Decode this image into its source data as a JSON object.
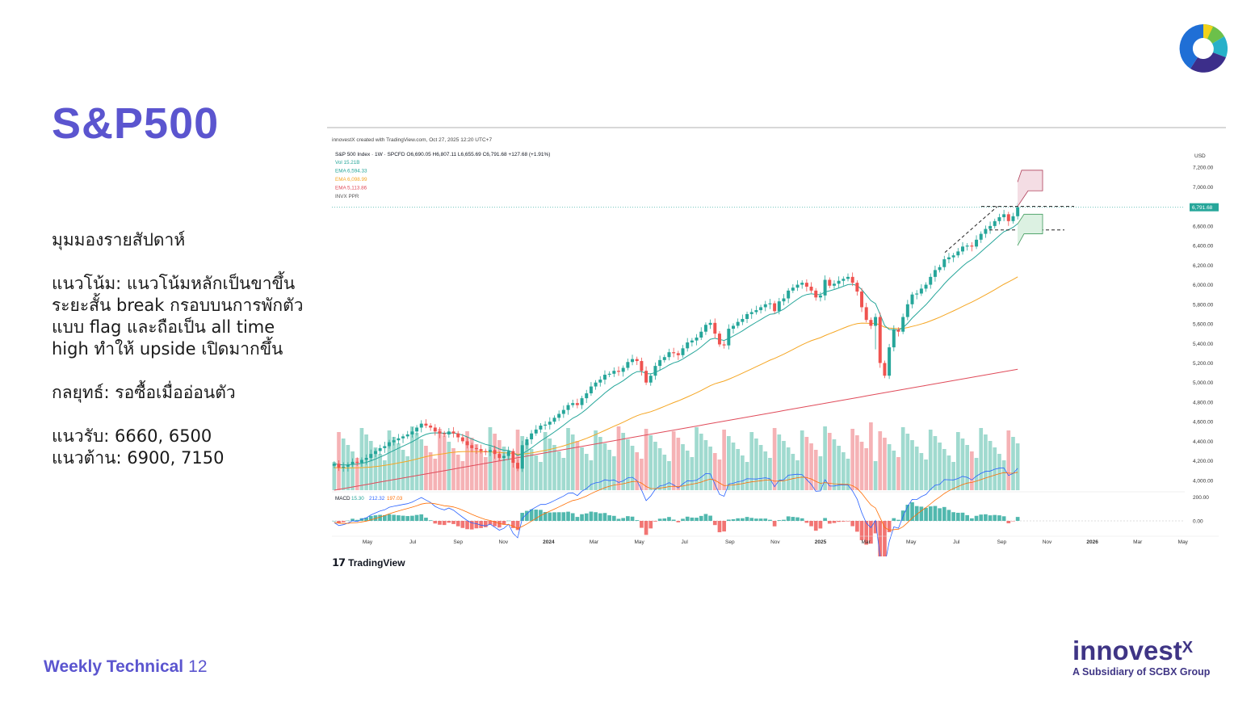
{
  "slide": {
    "title": "S&P500",
    "footer_label": "Weekly Technical",
    "page_number": "12"
  },
  "commentary": {
    "heading": "มุมมองรายสัปดาห์",
    "trend_lines": [
      "แนวโน้ม: แนวโน้มหลักเป็นขาขึ้น",
      "ระยะสั้น break กรอบบนการพักตัว",
      "แบบ flag และถือเป็น all time",
      "high ทำให้ upside เปิดมากขึ้น"
    ],
    "strategy": "กลยุทธ์: รอซื้อเมื่ออ่อนตัว",
    "support": "แนวรับ: 6660, 6500",
    "resistance": "แนวต้าน: 6900, 7150"
  },
  "brand": {
    "wordmark": "innovest",
    "wordmark_suffix": "X",
    "tagline": "A Subsidiary of SCBX Group",
    "colors": {
      "primary": "#3f3585",
      "accent": "#5b55cf",
      "logo_blue": "#1f6fd6",
      "logo_green": "#6cc04a",
      "logo_yellow": "#f2d21b",
      "logo_teal": "#27b1c9",
      "logo_purple": "#3c2e8a"
    }
  },
  "chart_data": {
    "type": "candlestick",
    "credit": "innovestX created with TradingView.com, Oct 27, 2025 12:20 UTC+7",
    "source_logo": "TradingView",
    "header": "S&P 500 Index · 1W · SPCFD  O6,690.05  H6,807.11  L6,655.69  C6,791.68  +127.68 (+1.91%)",
    "legend": [
      {
        "label": "Vol",
        "value": "15.21B",
        "color": "#26a69a"
      },
      {
        "label": "EMA",
        "value": "6,594.33",
        "color": "#26a69a"
      },
      {
        "label": "EMA",
        "value": "6,098.99",
        "color": "#f5a623"
      },
      {
        "label": "EMA",
        "value": "5,113.86",
        "color": "#e04b5a"
      },
      {
        "label": "INVX PPR",
        "value": "",
        "color": "#555555"
      }
    ],
    "currency": "USD",
    "y_ticks": [
      "7,200.00",
      "7,000.00",
      "6,800.00",
      "6,600.00",
      "6,400.00",
      "6,200.00",
      "6,000.00",
      "5,800.00",
      "5,600.00",
      "5,400.00",
      "5,200.00",
      "5,000.00",
      "4,800.00",
      "4,600.00",
      "4,400.00",
      "4,200.00",
      "4,000.00"
    ],
    "y_range": [
      3900,
      7350
    ],
    "last_price": "6,791.68",
    "x_ticks": [
      "May",
      "Jul",
      "Sep",
      "Nov",
      "2024",
      "Mar",
      "May",
      "Jul",
      "Sep",
      "Nov",
      "2025",
      "Mar",
      "May",
      "Jul",
      "Sep",
      "Nov",
      "2026",
      "Mar",
      "May"
    ],
    "closes": [
      4170,
      4130,
      4140,
      4160,
      4190,
      4180,
      4210,
      4230,
      4270,
      4300,
      4330,
      4350,
      4390,
      4410,
      4430,
      4450,
      4470,
      4500,
      4540,
      4580,
      4560,
      4540,
      4500,
      4480,
      4470,
      4500,
      4480,
      4440,
      4400,
      4360,
      4330,
      4320,
      4300,
      4290,
      4310,
      4270,
      4230,
      4250,
      4300,
      4180,
      4120,
      4360,
      4420,
      4480,
      4520,
      4560,
      4570,
      4600,
      4640,
      4680,
      4720,
      4770,
      4790,
      4770,
      4840,
      4890,
      4960,
      5000,
      5030,
      5080,
      5090,
      5120,
      5110,
      5150,
      5210,
      5240,
      5220,
      5120,
      5000,
      5070,
      5170,
      5230,
      5260,
      5310,
      5300,
      5280,
      5350,
      5410,
      5430,
      5460,
      5520,
      5590,
      5610,
      5500,
      5390,
      5380,
      5550,
      5580,
      5620,
      5650,
      5700,
      5720,
      5740,
      5770,
      5800,
      5810,
      5730,
      5830,
      5860,
      5940,
      5970,
      6000,
      6020,
      5980,
      5940,
      5870,
      5890,
      6050,
      5990,
      6010,
      6040,
      6060,
      6080,
      6020,
      5930,
      5770,
      5640,
      5580,
      5670,
      5200,
      5070,
      5360,
      5540,
      5520,
      5670,
      5800,
      5900,
      5910,
      5960,
      6000,
      6080,
      6150,
      6180,
      6260,
      6280,
      6300,
      6340,
      6390,
      6400,
      6390,
      6460,
      6520,
      6570,
      6600,
      6650,
      6690,
      6720,
      6650,
      6700,
      6791.68
    ],
    "volume_note": "weekly volume bars, green = up week, red = down week",
    "ema_series": [
      {
        "name": "EMA 6,594.33",
        "color": "#26a69a"
      },
      {
        "name": "EMA 6,098.99",
        "color": "#f5a623"
      },
      {
        "name": "EMA 5,113.86",
        "color": "#e04b5a"
      }
    ],
    "support_levels": [
      6660,
      6500
    ],
    "resistance_levels": [
      6900,
      7150
    ],
    "macd": {
      "label": "MACD",
      "values": [
        "15.30",
        "212.32",
        "197.03"
      ],
      "y_ticks": [
        "200.00",
        "0.00"
      ]
    }
  }
}
